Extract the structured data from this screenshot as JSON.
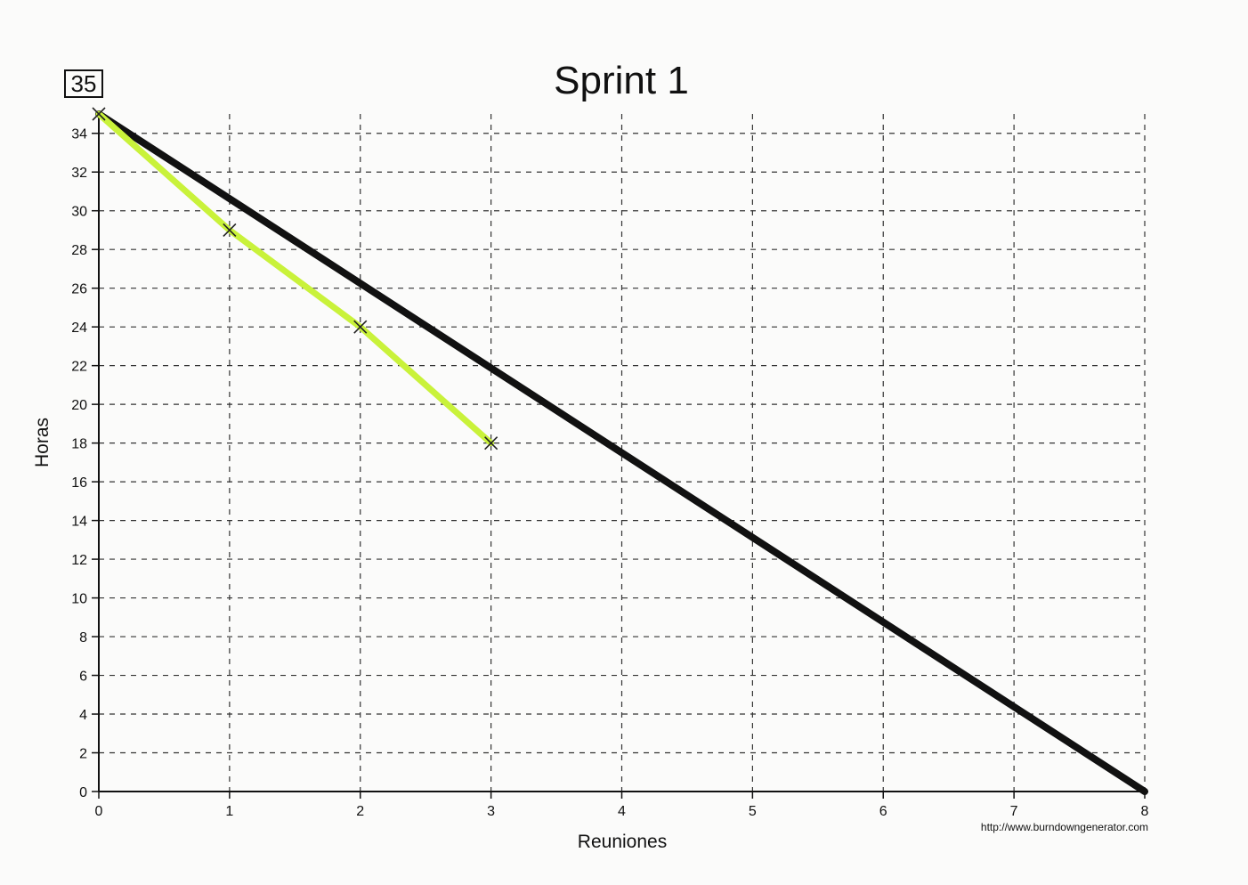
{
  "chart_data": {
    "type": "line",
    "badge": "35",
    "title": "Sprint 1",
    "xlabel": "Reuniones",
    "ylabel": "Horas",
    "source": "http://www.burndowngenerator.com",
    "xlim": [
      0,
      8
    ],
    "ylim": [
      0,
      35
    ],
    "xticks": [
      0,
      1,
      2,
      3,
      4,
      5,
      6,
      7,
      8
    ],
    "yticks": [
      0,
      2,
      4,
      6,
      8,
      10,
      12,
      14,
      16,
      18,
      20,
      22,
      24,
      26,
      28,
      30,
      32,
      34
    ],
    "grid": true,
    "series": [
      {
        "style": "ideal",
        "color": "#111111",
        "x": [
          0,
          8
        ],
        "y": [
          35,
          0
        ]
      },
      {
        "style": "actual",
        "color": "#c9f23a",
        "markerColor": "#222222",
        "x": [
          0,
          1,
          2,
          3
        ],
        "y": [
          35,
          29,
          24,
          18
        ]
      }
    ]
  }
}
